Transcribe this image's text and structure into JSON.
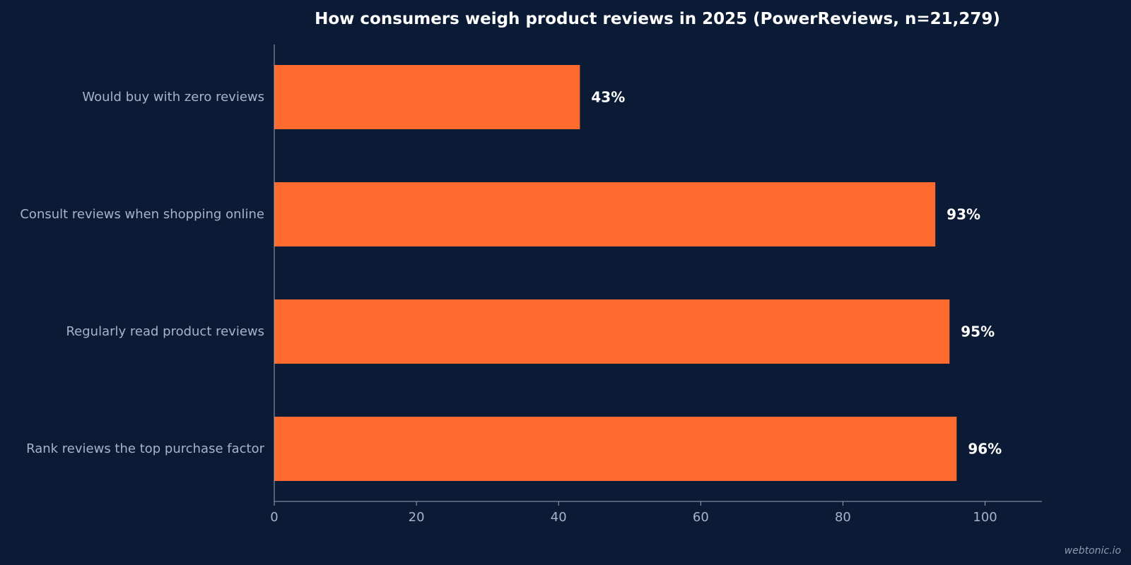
{
  "watermark": "webtonic.io",
  "colors": {
    "background": "#0b1b35",
    "bar": "#ff6b2e",
    "axis": "#9aa5b8",
    "label": "#a9b3c7",
    "value": "#ffffff"
  },
  "chart_data": {
    "type": "bar",
    "orientation": "horizontal",
    "title": "How consumers weigh product reviews in 2025 (PowerReviews, n=21,279)",
    "xlabel": "",
    "ylabel": "",
    "categories": [
      "Would buy with zero reviews",
      "Consult reviews when shopping online",
      "Regularly read product reviews",
      "Rank reviews the top purchase factor"
    ],
    "values": [
      43,
      93,
      95,
      96
    ],
    "value_labels": [
      "43%",
      "93%",
      "95%",
      "96%"
    ],
    "xlim": [
      0,
      108
    ],
    "xticks": [
      0,
      20,
      40,
      60,
      80,
      100
    ],
    "xtick_labels": [
      "0",
      "20",
      "40",
      "60",
      "80",
      "100"
    ],
    "grid": false,
    "legend": "none"
  }
}
